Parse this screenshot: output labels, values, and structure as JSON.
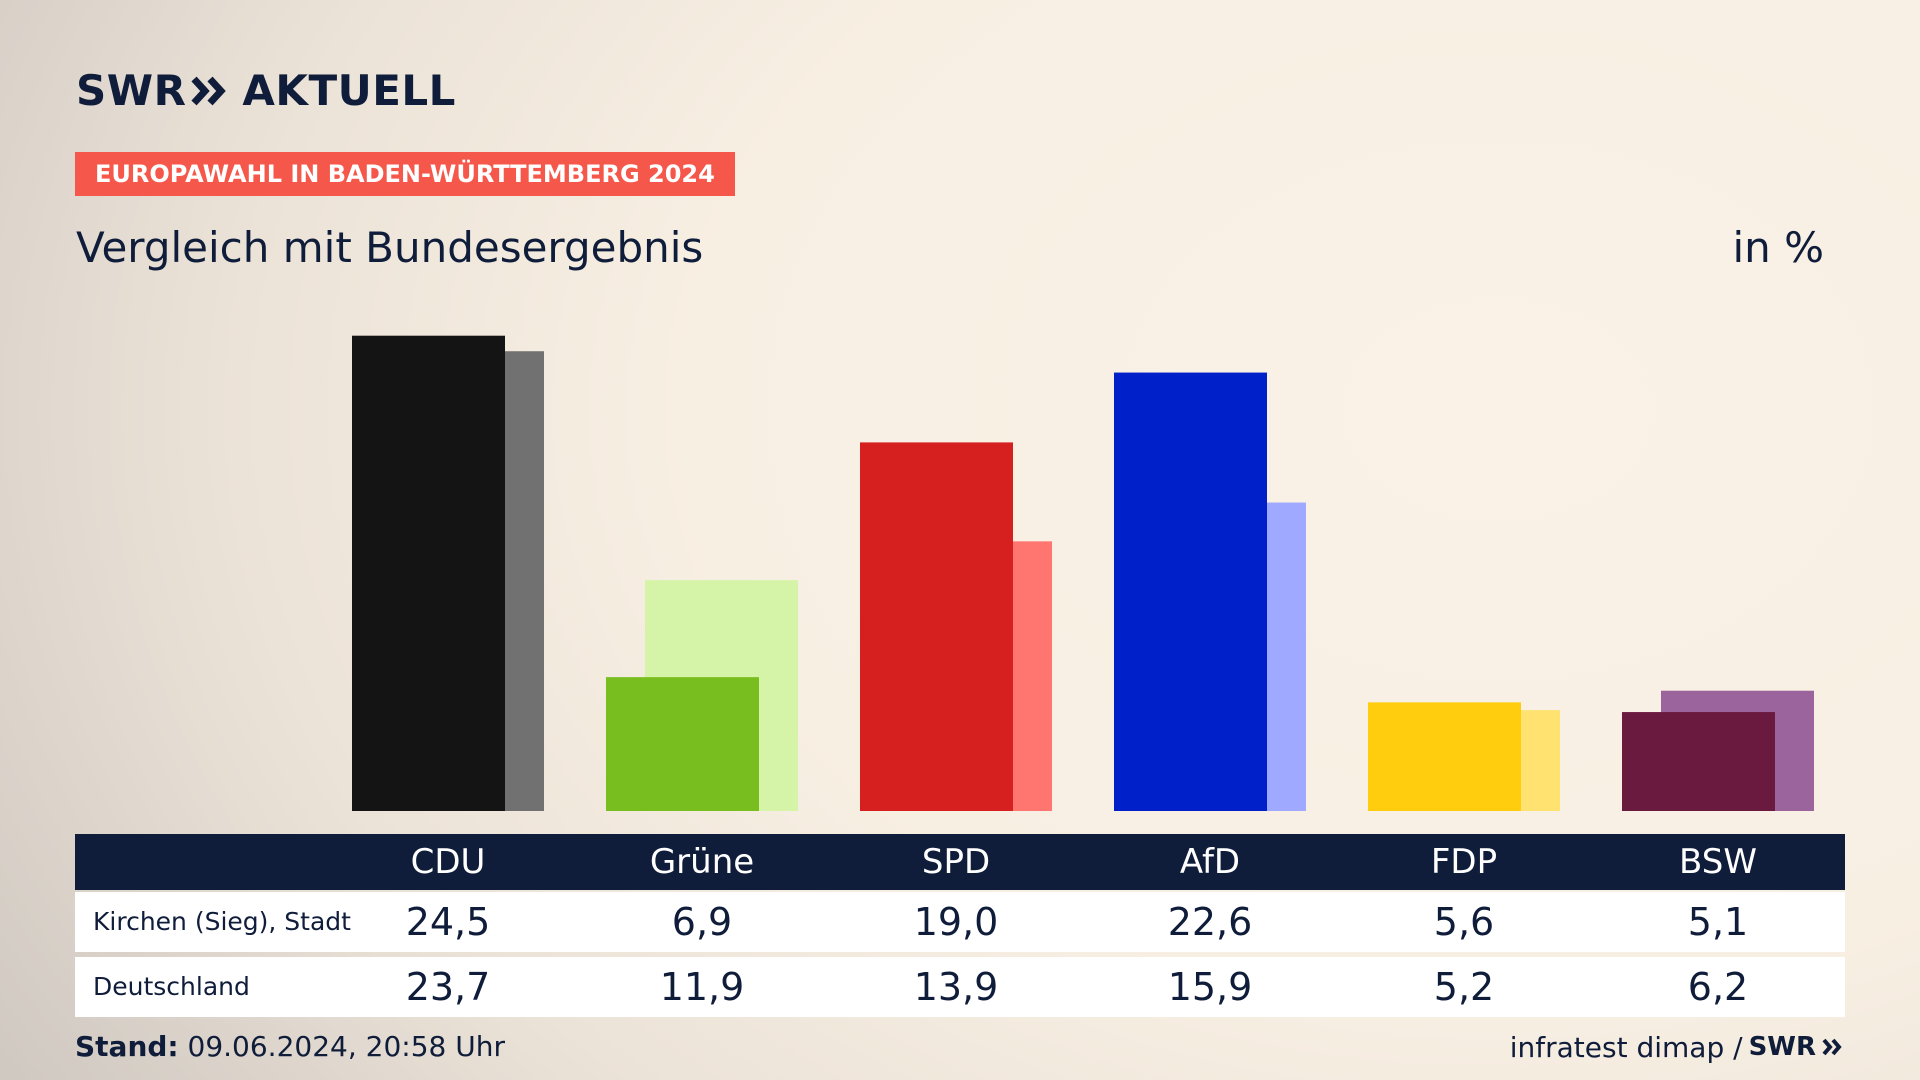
{
  "header": {
    "logo_text": "SWR",
    "logo_suffix": "AKTUELL",
    "badge": "EUROPAWAHL IN BADEN-WÜRTTEMBERG 2024",
    "subtitle": "Vergleich mit Bundesergebnis",
    "unit": "in %"
  },
  "table": {
    "row_labels": [
      "Kirchen (Sieg), Stadt",
      "Deutschland"
    ]
  },
  "footer": {
    "stand_label": "Stand:",
    "stand_value": " 09.06.2024, 20:58 Uhr",
    "source": "infratest dimap /",
    "source_logo": "SWR"
  },
  "chart_data": {
    "type": "bar",
    "categories": [
      "CDU",
      "Grüne",
      "SPD",
      "AfD",
      "FDP",
      "BSW"
    ],
    "series": [
      {
        "name": "Kirchen (Sieg), Stadt",
        "values": [
          24.5,
          6.9,
          19.0,
          22.6,
          5.6,
          5.1
        ],
        "labels": [
          "24,5",
          "6,9",
          "19,0",
          "22,6",
          "5,6",
          "5,1"
        ],
        "colors": [
          "#141414",
          "#78be1e",
          "#d61f1f",
          "#0021c9",
          "#ffcc0e",
          "#6b1a3f"
        ]
      },
      {
        "name": "Deutschland",
        "values": [
          23.7,
          11.9,
          13.9,
          15.9,
          5.2,
          6.2
        ],
        "labels": [
          "23,7",
          "11,9",
          "13,9",
          "15,9",
          "5,2",
          "6,2"
        ],
        "colors": [
          "#727171",
          "#d6f4a8",
          "#ff7570",
          "#9ea9ff",
          "#ffe270",
          "#9c649c"
        ]
      }
    ],
    "ylim": [
      0,
      25
    ]
  }
}
